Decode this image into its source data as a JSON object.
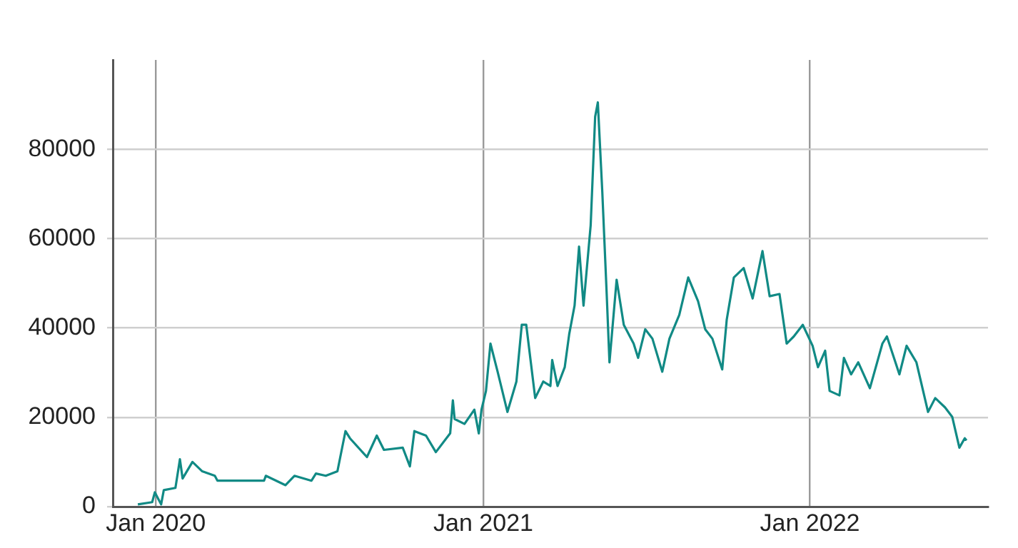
{
  "chart_data": {
    "type": "line",
    "color": "#118a85",
    "grid": true,
    "marker": "none",
    "line_style": "solid",
    "xlim": [
      "2019-11-14",
      "2022-07-19"
    ],
    "xticks": [
      {
        "value": "2020-01-01",
        "label": "Jan 2020"
      },
      {
        "value": "2021-01-01",
        "label": "Jan 2021"
      },
      {
        "value": "2022-01-01",
        "label": "Jan 2022"
      }
    ],
    "ylim": [
      0,
      100000
    ],
    "yticks": [
      0,
      20000,
      40000,
      60000,
      80000
    ],
    "x": [
      "2019-12-12",
      "2019-12-28",
      "2019-12-31",
      "2020-01-07",
      "2020-01-10",
      "2020-01-23",
      "2020-01-28",
      "2020-01-31",
      "2020-02-11",
      "2020-02-22",
      "2020-03-07",
      "2020-03-10",
      "2020-05-01",
      "2020-05-03",
      "2020-05-25",
      "2020-06-04",
      "2020-06-23",
      "2020-06-28",
      "2020-07-09",
      "2020-07-22",
      "2020-07-31",
      "2020-08-05",
      "2020-08-24",
      "2020-09-04",
      "2020-09-12",
      "2020-10-03",
      "2020-10-11",
      "2020-10-16",
      "2020-10-29",
      "2020-11-09",
      "2020-11-25",
      "2020-11-28",
      "2020-11-30",
      "2020-12-11",
      "2020-12-22",
      "2020-12-27",
      "2020-12-30",
      "2021-01-04",
      "2021-01-09",
      "2021-01-17",
      "2021-01-28",
      "2021-02-07",
      "2021-02-13",
      "2021-02-18",
      "2021-02-28",
      "2021-03-09",
      "2021-03-17",
      "2021-03-19",
      "2021-03-25",
      "2021-04-02",
      "2021-04-07",
      "2021-04-13",
      "2021-04-18",
      "2021-04-23",
      "2021-05-01",
      "2021-05-06",
      "2021-05-09",
      "2021-05-14",
      "2021-05-19",
      "2021-05-22",
      "2021-05-30",
      "2021-06-07",
      "2021-06-18",
      "2021-06-23",
      "2021-07-01",
      "2021-07-09",
      "2021-07-20",
      "2021-07-28",
      "2021-08-08",
      "2021-08-18",
      "2021-08-29",
      "2021-09-06",
      "2021-09-14",
      "2021-09-25",
      "2021-09-30",
      "2021-10-08",
      "2021-10-19",
      "2021-10-29",
      "2021-11-09",
      "2021-11-17",
      "2021-11-28",
      "2021-12-06",
      "2021-12-14",
      "2021-12-24",
      "2022-01-04",
      "2022-01-10",
      "2022-01-18",
      "2022-01-23",
      "2022-02-03",
      "2022-02-08",
      "2022-02-16",
      "2022-02-24",
      "2022-03-09",
      "2022-03-23",
      "2022-03-28",
      "2022-04-11",
      "2022-04-19",
      "2022-04-30",
      "2022-05-13",
      "2022-05-21",
      "2022-06-01",
      "2022-06-09",
      "2022-06-17",
      "2022-06-23",
      "2022-06-25"
    ],
    "values": [
      500,
      1000,
      3200,
      500,
      3700,
      4200,
      10600,
      6300,
      10000,
      7900,
      6900,
      5800,
      5800,
      6900,
      4800,
      6900,
      5800,
      7400,
      6900,
      7900,
      16900,
      15300,
      11100,
      15900,
      12700,
      13200,
      9000,
      16900,
      15900,
      12200,
      16400,
      23800,
      19600,
      18500,
      21700,
      16400,
      21700,
      25900,
      36500,
      30200,
      21200,
      28000,
      40700,
      40700,
      24300,
      28000,
      27000,
      32800,
      27000,
      31200,
      38600,
      45000,
      58200,
      45000,
      63000,
      87300,
      90500,
      70400,
      47100,
      32300,
      50800,
      40700,
      36500,
      33300,
      39700,
      37600,
      30200,
      37600,
      42900,
      51300,
      46000,
      39700,
      37600,
      30700,
      41800,
      51300,
      53400,
      46600,
      57200,
      47100,
      47600,
      36500,
      38100,
      40700,
      36000,
      31200,
      34900,
      25900,
      24900,
      33300,
      29600,
      32300,
      26500,
      36500,
      38100,
      29600,
      36000,
      32300,
      21200,
      24300,
      22200,
      20100,
      13200,
      15300,
      14800
    ]
  }
}
